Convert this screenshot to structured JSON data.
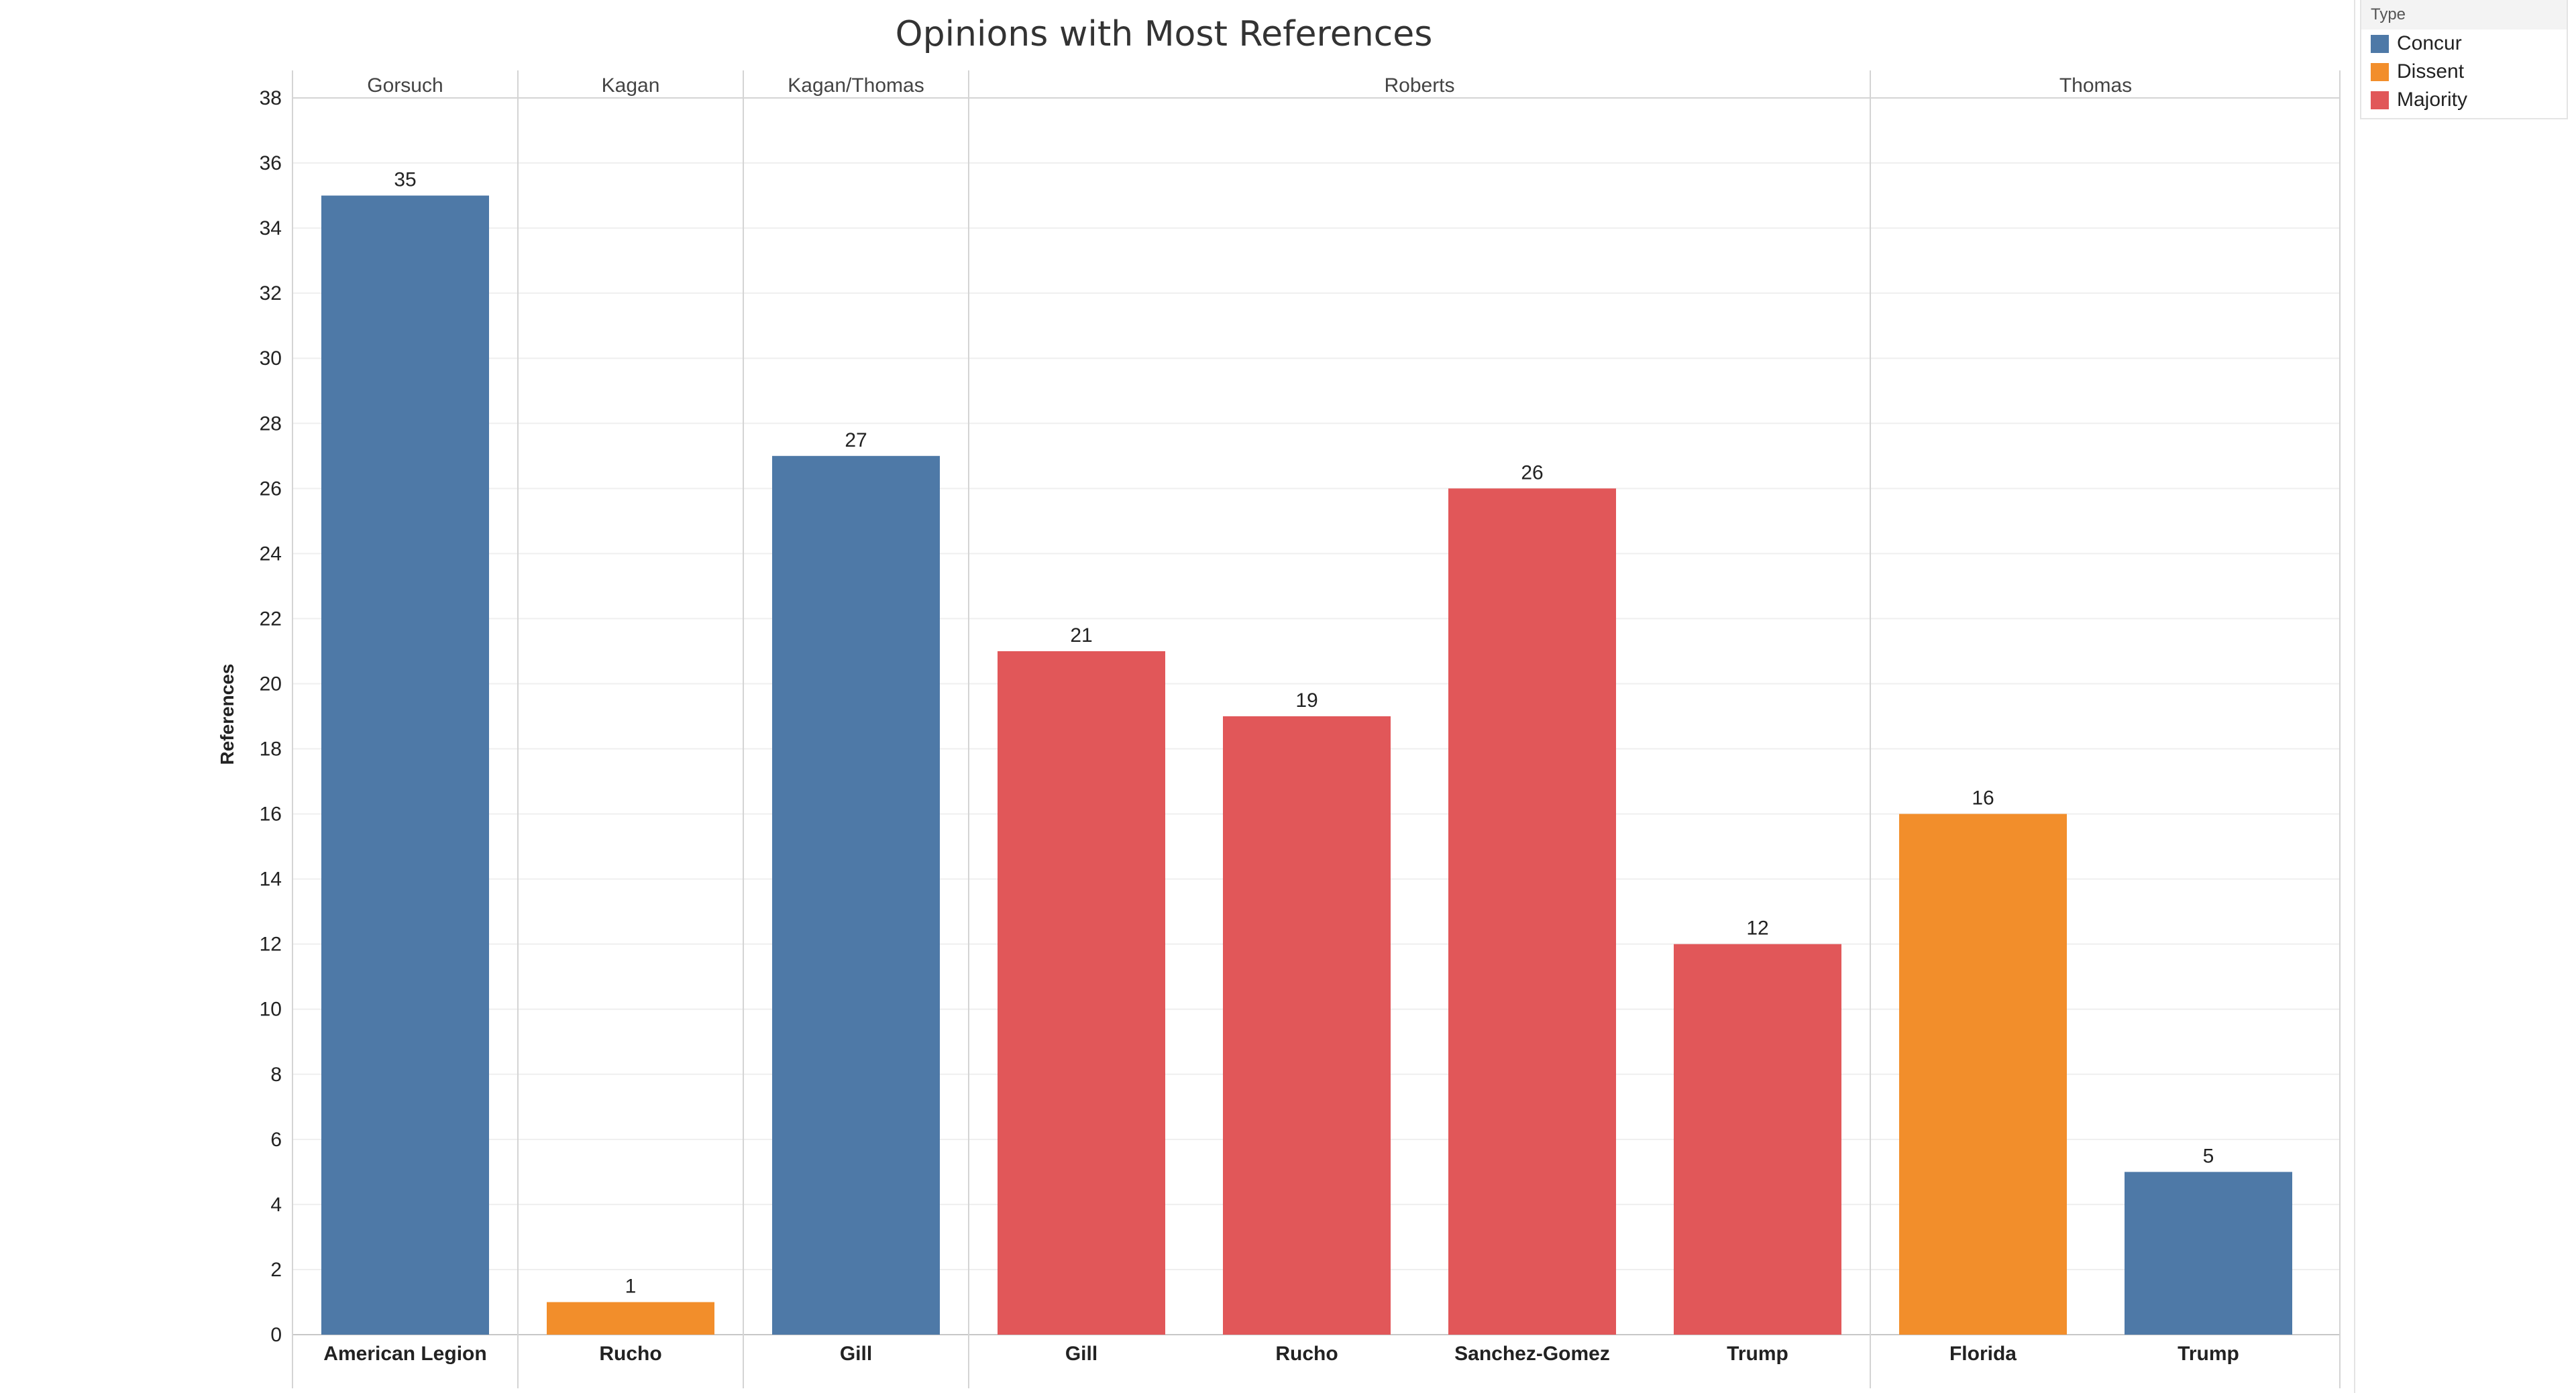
{
  "chart_data": {
    "type": "bar",
    "title": "Opinions with Most References",
    "ylabel": "References",
    "xlabel": "",
    "ylim": [
      0,
      38
    ],
    "ytick_labels": [
      "0",
      "2",
      "4",
      "6",
      "8",
      "10",
      "12",
      "14",
      "16",
      "18",
      "20",
      "22",
      "24",
      "26",
      "28",
      "30",
      "32",
      "34",
      "36",
      "38"
    ],
    "groups": [
      {
        "name": "Gorsuch",
        "bars": [
          {
            "category": "American Legion",
            "value": 35,
            "type": "Concur"
          }
        ]
      },
      {
        "name": "Kagan",
        "bars": [
          {
            "category": "Rucho",
            "value": 1,
            "type": "Dissent"
          }
        ]
      },
      {
        "name": "Kagan/Thomas",
        "bars": [
          {
            "category": "Gill",
            "value": 27,
            "type": "Concur"
          }
        ]
      },
      {
        "name": "Roberts",
        "bars": [
          {
            "category": "Gill",
            "value": 21,
            "type": "Majority"
          },
          {
            "category": "Rucho",
            "value": 19,
            "type": "Majority"
          },
          {
            "category": "Sanchez-Gomez",
            "value": 26,
            "type": "Majority"
          },
          {
            "category": "Trump",
            "value": 12,
            "type": "Majority"
          }
        ]
      },
      {
        "name": "Thomas",
        "bars": [
          {
            "category": "Florida",
            "value": 16,
            "type": "Dissent"
          },
          {
            "category": "Trump",
            "value": 5,
            "type": "Concur"
          }
        ]
      }
    ],
    "legend": {
      "title": "Type",
      "items": [
        {
          "label": "Concur",
          "color": "#4e79a7"
        },
        {
          "label": "Dissent",
          "color": "#f28e2b"
        },
        {
          "label": "Majority",
          "color": "#e15759"
        }
      ]
    }
  }
}
